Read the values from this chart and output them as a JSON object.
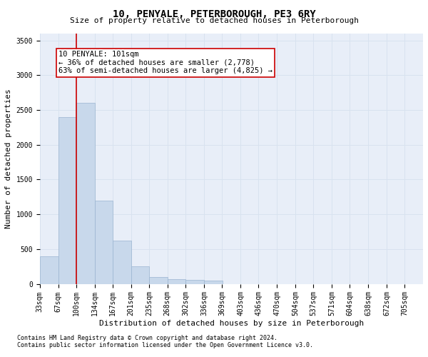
{
  "title": "10, PENYALE, PETERBOROUGH, PE3 6RY",
  "subtitle": "Size of property relative to detached houses in Peterborough",
  "xlabel": "Distribution of detached houses by size in Peterborough",
  "ylabel": "Number of detached properties",
  "footnote1": "Contains HM Land Registry data © Crown copyright and database right 2024.",
  "footnote2": "Contains public sector information licensed under the Open Government Licence v3.0.",
  "bar_color": "#c8d8eb",
  "bar_edge_color": "#9ab4d0",
  "grid_color": "#d8e2ef",
  "background_color": "#e8eef8",
  "vline_x": 101,
  "vline_color": "#cc0000",
  "annotation_text": "10 PENYALE: 101sqm\n← 36% of detached houses are smaller (2,778)\n63% of semi-detached houses are larger (4,825) →",
  "annotation_box_color": "#ffffff",
  "annotation_box_edge": "#cc0000",
  "categories": [
    "33sqm",
    "67sqm",
    "100sqm",
    "134sqm",
    "167sqm",
    "201sqm",
    "235sqm",
    "268sqm",
    "302sqm",
    "336sqm",
    "369sqm",
    "403sqm",
    "436sqm",
    "470sqm",
    "504sqm",
    "537sqm",
    "571sqm",
    "604sqm",
    "638sqm",
    "672sqm",
    "705sqm"
  ],
  "bin_edges": [
    33,
    67,
    100,
    134,
    167,
    201,
    235,
    268,
    302,
    336,
    369,
    403,
    436,
    470,
    504,
    537,
    571,
    604,
    638,
    672,
    705
  ],
  "values": [
    400,
    2400,
    2600,
    1200,
    620,
    250,
    100,
    65,
    60,
    45,
    0,
    0,
    0,
    0,
    0,
    0,
    0,
    0,
    0,
    0,
    0
  ],
  "ylim": [
    0,
    3600
  ],
  "yticks": [
    0,
    500,
    1000,
    1500,
    2000,
    2500,
    3000,
    3500
  ],
  "title_fontsize": 10,
  "subtitle_fontsize": 8,
  "xlabel_fontsize": 8,
  "ylabel_fontsize": 8,
  "tick_fontsize": 7,
  "annot_fontsize": 7.5,
  "footnote_fontsize": 6
}
